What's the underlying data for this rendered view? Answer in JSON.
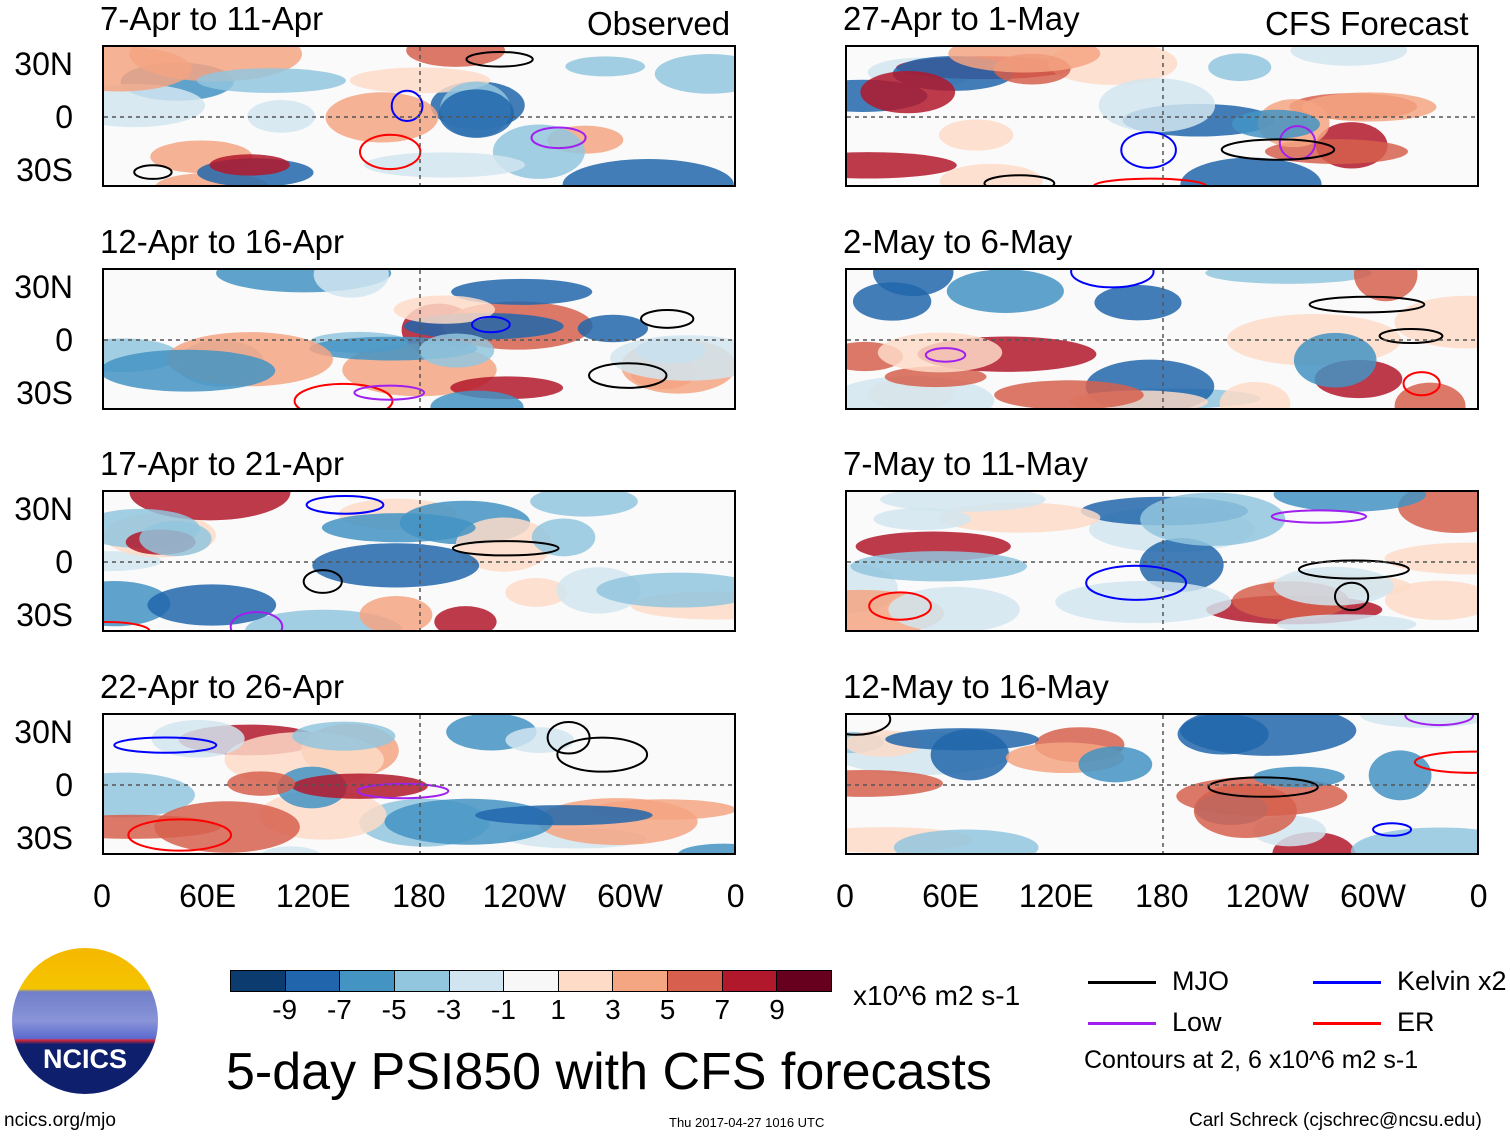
{
  "panels_left": {
    "header_right": "Observed",
    "titles": [
      "7-Apr to 11-Apr",
      "12-Apr to 16-Apr",
      "17-Apr to 21-Apr",
      "22-Apr to 26-Apr"
    ]
  },
  "panels_right": {
    "header_right": "CFS Forecast",
    "titles": [
      "27-Apr to 1-May",
      "2-May to 6-May",
      "7-May to 11-May",
      "12-May to 16-May"
    ]
  },
  "lat_labels": [
    "30N",
    "0",
    "30S"
  ],
  "lon_labels": [
    "0",
    "60E",
    "120E",
    "180",
    "120W",
    "60W",
    "0"
  ],
  "chart_data": {
    "type": "heatmap",
    "title": "5-day PSI850 with CFS forecasts",
    "variable": "PSI850 anomaly",
    "units": "x10^6 m2 s-1",
    "colorbar": {
      "tick_labels": [
        "-9",
        "-7",
        "-5",
        "-3",
        "-1",
        "1",
        "3",
        "5",
        "7",
        "9"
      ],
      "colors": [
        "#0b3b6f",
        "#2166ac",
        "#4393c3",
        "#92c5de",
        "#d1e5f0",
        "#f7f7f7",
        "#fddbc7",
        "#f4a582",
        "#d6604d",
        "#b2182b",
        "#67001f"
      ]
    },
    "lat_range": [
      "30S",
      "30N"
    ],
    "lon_range": [
      "0",
      "0"
    ],
    "legend": [
      {
        "label": "MJO",
        "color": "#000000"
      },
      {
        "label": "Kelvin x2",
        "color": "#0000ff"
      },
      {
        "label": "Low",
        "color": "#a020f0"
      },
      {
        "label": "ER",
        "color": "#ff0000"
      }
    ],
    "contour_note": "Contours at 2, 6 x10^6 m2 s-1"
  },
  "logo": {
    "text": "NCICS"
  },
  "footer": {
    "url": "ncics.org/mjo",
    "timestamp": "Thu 2017-04-27 1016 UTC",
    "credit": "Carl Schreck (cjschrec@ncsu.edu)"
  }
}
